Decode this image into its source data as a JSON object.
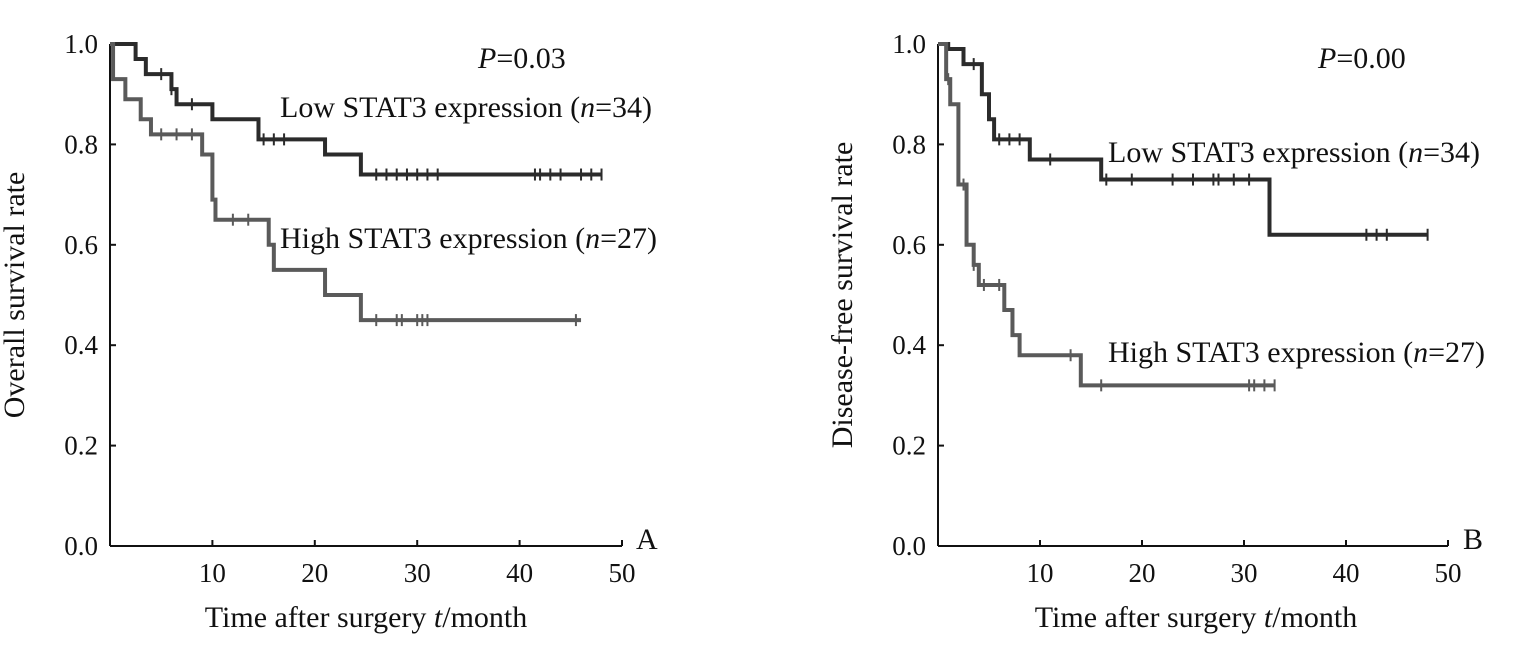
{
  "chart_data": [
    {
      "type": "line",
      "style": "kaplan-meier",
      "panel": "A",
      "pvalue_label": "P",
      "pvalue_text": "=0.03",
      "xlabel_prefix": "Time after surgery ",
      "xlabel_var": "t",
      "xlabel_suffix": "/month",
      "ylabel": "Overall survival rate",
      "xlim": [
        0,
        50
      ],
      "ylim": [
        0,
        1
      ],
      "xticks": [
        10,
        20,
        30,
        40,
        50
      ],
      "yticks": [
        "0.0",
        "0.2",
        "0.4",
        "0.6",
        "0.8",
        "1.0"
      ],
      "series": [
        {
          "name": "Low STAT3 expression",
          "n_label": "n",
          "label_prefix": "Low STAT3 expression (",
          "label_suffix": "=34)",
          "color": "#2b2b2b",
          "steps": [
            [
              0,
              1.0
            ],
            [
              2.5,
              0.97
            ],
            [
              3.5,
              0.94
            ],
            [
              6,
              0.91
            ],
            [
              6.5,
              0.88
            ],
            [
              10,
              0.85
            ],
            [
              14.5,
              0.81
            ],
            [
              21,
              0.78
            ],
            [
              24.5,
              0.74
            ],
            [
              48,
              0.74
            ]
          ],
          "censored_x": [
            5,
            6,
            8,
            15,
            16,
            17,
            26,
            27,
            28,
            29,
            30,
            31,
            32,
            41.5,
            42,
            43,
            44,
            46,
            47,
            48
          ]
        },
        {
          "name": "High STAT3 expression",
          "n_label": "n",
          "label_prefix": "High STAT3 expression (",
          "label_suffix": "=27)",
          "color": "#5a5a5a",
          "steps": [
            [
              0,
              1.0
            ],
            [
              0.3,
              0.93
            ],
            [
              1.5,
              0.89
            ],
            [
              3,
              0.85
            ],
            [
              4,
              0.82
            ],
            [
              9,
              0.78
            ],
            [
              10,
              0.69
            ],
            [
              10.3,
              0.65
            ],
            [
              15.5,
              0.6
            ],
            [
              16,
              0.55
            ],
            [
              21,
              0.5
            ],
            [
              24.5,
              0.45
            ],
            [
              46,
              0.45
            ]
          ],
          "censored_x": [
            5,
            6.5,
            8,
            12,
            13.5,
            26,
            28,
            28.5,
            30,
            30.5,
            31,
            45.5
          ]
        }
      ]
    },
    {
      "type": "line",
      "style": "kaplan-meier",
      "panel": "B",
      "pvalue_label": "P",
      "pvalue_text": "=0.00",
      "xlabel_prefix": "Time after surgery ",
      "xlabel_var": "t",
      "xlabel_suffix": "/month",
      "ylabel": "Disease-free survival rate",
      "xlim": [
        0,
        50
      ],
      "ylim": [
        0,
        1
      ],
      "xticks": [
        10,
        20,
        30,
        40,
        50
      ],
      "yticks": [
        "0.0",
        "0.2",
        "0.4",
        "0.6",
        "0.8",
        "1.0"
      ],
      "series": [
        {
          "name": "Low STAT3 expression",
          "n_label": "n",
          "label_prefix": "Low STAT3 expression (",
          "label_suffix": "=34)",
          "color": "#2b2b2b",
          "steps": [
            [
              0,
              1.0
            ],
            [
              1,
              0.99
            ],
            [
              2.5,
              0.96
            ],
            [
              4.3,
              0.9
            ],
            [
              5,
              0.85
            ],
            [
              5.5,
              0.81
            ],
            [
              9,
              0.77
            ],
            [
              16,
              0.73
            ],
            [
              32.5,
              0.62
            ],
            [
              48,
              0.62
            ]
          ],
          "censored_x": [
            3.5,
            6,
            7,
            8,
            11,
            16.5,
            19,
            23,
            25,
            27,
            27.5,
            29,
            30.5,
            42,
            43,
            44,
            48
          ]
        },
        {
          "name": "High STAT3 expression",
          "n_label": "n",
          "label_prefix": "High STAT3 expression (",
          "label_suffix": "=27)",
          "color": "#5a5a5a",
          "steps": [
            [
              0,
              1.0
            ],
            [
              0.8,
              0.93
            ],
            [
              1.2,
              0.88
            ],
            [
              2,
              0.72
            ],
            [
              2.8,
              0.6
            ],
            [
              3.5,
              0.56
            ],
            [
              4,
              0.52
            ],
            [
              6.5,
              0.47
            ],
            [
              7.3,
              0.42
            ],
            [
              8,
              0.38
            ],
            [
              14,
              0.32
            ],
            [
              33,
              0.32
            ]
          ],
          "censored_x": [
            1,
            2.5,
            3.5,
            4.5,
            6,
            13,
            16,
            30.5,
            31,
            32,
            33
          ]
        }
      ]
    }
  ]
}
